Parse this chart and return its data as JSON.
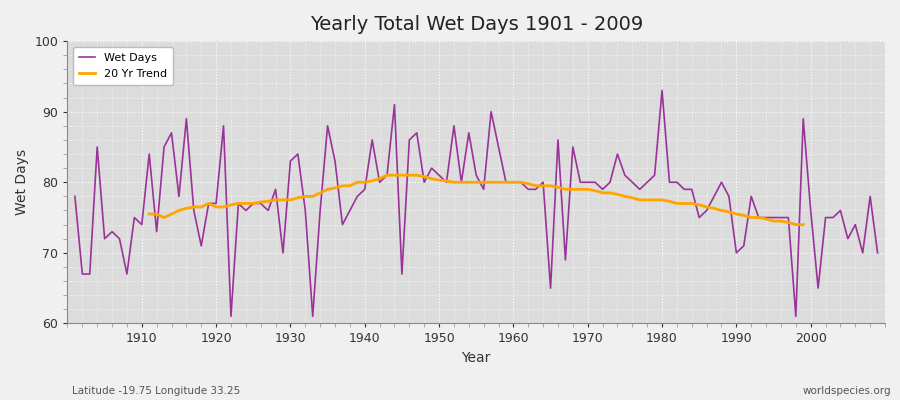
{
  "title": "Yearly Total Wet Days 1901 - 2009",
  "xlabel": "Year",
  "ylabel": "Wet Days",
  "footnote_left": "Latitude -19.75 Longitude 33.25",
  "footnote_right": "worldspecies.org",
  "ylim": [
    60,
    100
  ],
  "xlim": [
    1900,
    2010
  ],
  "years": [
    1901,
    1902,
    1903,
    1904,
    1905,
    1906,
    1907,
    1908,
    1909,
    1910,
    1911,
    1912,
    1913,
    1914,
    1915,
    1916,
    1917,
    1918,
    1919,
    1920,
    1921,
    1922,
    1923,
    1924,
    1925,
    1926,
    1927,
    1928,
    1929,
    1930,
    1931,
    1932,
    1933,
    1934,
    1935,
    1936,
    1937,
    1938,
    1939,
    1940,
    1941,
    1942,
    1943,
    1944,
    1945,
    1946,
    1947,
    1948,
    1949,
    1950,
    1951,
    1952,
    1953,
    1954,
    1955,
    1956,
    1957,
    1958,
    1959,
    1960,
    1961,
    1962,
    1963,
    1964,
    1965,
    1966,
    1967,
    1968,
    1969,
    1970,
    1971,
    1972,
    1973,
    1974,
    1975,
    1976,
    1977,
    1978,
    1979,
    1980,
    1981,
    1982,
    1983,
    1984,
    1985,
    1986,
    1987,
    1988,
    1989,
    1990,
    1991,
    1992,
    1993,
    1994,
    1995,
    1996,
    1997,
    1998,
    1999,
    2000,
    2001,
    2002,
    2003,
    2004,
    2005,
    2006,
    2007,
    2008,
    2009
  ],
  "wet_days": [
    78,
    67,
    67,
    85,
    72,
    73,
    72,
    67,
    75,
    74,
    84,
    73,
    85,
    87,
    78,
    89,
    76,
    71,
    77,
    77,
    88,
    61,
    77,
    76,
    77,
    77,
    76,
    79,
    70,
    83,
    84,
    76,
    61,
    76,
    88,
    83,
    74,
    76,
    78,
    79,
    86,
    80,
    81,
    91,
    67,
    86,
    87,
    80,
    82,
    81,
    80,
    88,
    80,
    87,
    81,
    79,
    90,
    85,
    80,
    80,
    80,
    79,
    79,
    80,
    65,
    86,
    69,
    85,
    80,
    80,
    80,
    79,
    80,
    84,
    81,
    80,
    79,
    80,
    81,
    93,
    80,
    80,
    79,
    79,
    75,
    76,
    78,
    80,
    78,
    70,
    71,
    78,
    75,
    75,
    75,
    75,
    75,
    61,
    89,
    76,
    65,
    75,
    75,
    76,
    72,
    74,
    70,
    78,
    70
  ],
  "trend_years": [
    1911,
    1912,
    1913,
    1914,
    1915,
    1916,
    1917,
    1918,
    1919,
    1920,
    1921,
    1922,
    1923,
    1924,
    1925,
    1926,
    1927,
    1928,
    1929,
    1930,
    1931,
    1932,
    1933,
    1934,
    1935,
    1936,
    1937,
    1938,
    1939,
    1940,
    1941,
    1942,
    1943,
    1944,
    1945,
    1946,
    1947,
    1948,
    1949,
    1950,
    1951,
    1952,
    1953,
    1954,
    1955,
    1956,
    1957,
    1958,
    1959,
    1960,
    1961,
    1962,
    1963,
    1964,
    1965,
    1966,
    1967,
    1968,
    1969,
    1970,
    1971,
    1972,
    1973,
    1974,
    1975,
    1976,
    1977,
    1978,
    1979,
    1980,
    1981,
    1982,
    1983,
    1984,
    1985,
    1986,
    1987,
    1988,
    1989,
    1990,
    1991,
    1992,
    1993,
    1994,
    1995,
    1996,
    1997,
    1998,
    1999
  ],
  "trend_vals": [
    75.5,
    75.5,
    75.0,
    75.5,
    76.0,
    76.3,
    76.5,
    76.5,
    77.0,
    76.5,
    76.5,
    76.8,
    77.0,
    77.0,
    77.0,
    77.2,
    77.3,
    77.5,
    77.5,
    77.5,
    77.8,
    78.0,
    78.0,
    78.5,
    79.0,
    79.2,
    79.5,
    79.5,
    80.0,
    80.0,
    80.2,
    80.5,
    81.0,
    81.0,
    81.0,
    81.0,
    81.0,
    80.8,
    80.5,
    80.3,
    80.2,
    80.0,
    80.0,
    80.0,
    80.0,
    80.0,
    80.0,
    80.0,
    80.0,
    80.0,
    80.0,
    79.8,
    79.5,
    79.5,
    79.5,
    79.3,
    79.0,
    79.0,
    79.0,
    79.0,
    78.8,
    78.5,
    78.5,
    78.3,
    78.0,
    77.8,
    77.5,
    77.5,
    77.5,
    77.5,
    77.3,
    77.0,
    77.0,
    77.0,
    76.8,
    76.5,
    76.3,
    76.0,
    75.8,
    75.5,
    75.3,
    75.0,
    75.0,
    74.8,
    74.5,
    74.5,
    74.3,
    74.0,
    74.0
  ],
  "wet_days_color": "#993399",
  "trend_color": "#FFA500",
  "bg_color_top": "#DCDCDC",
  "bg_color_plot": "#DCDCDC",
  "grid_color": "#FFFFFF",
  "fig_bg": "#F0F0F0"
}
